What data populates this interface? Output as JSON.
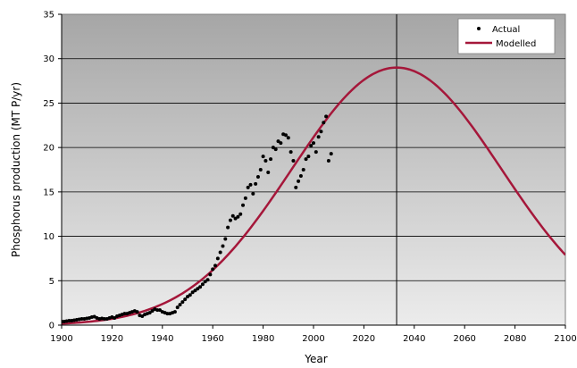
{
  "chart_data": {
    "type": "line",
    "title": "",
    "xlabel": "Year",
    "ylabel": "Phosphorus production (MT P/yr)",
    "xlim": [
      1900,
      2100
    ],
    "ylim": [
      0,
      35
    ],
    "x_ticks": [
      1900,
      1920,
      1940,
      1960,
      1980,
      2000,
      2020,
      2040,
      2060,
      2080,
      2100
    ],
    "y_ticks": [
      0,
      5,
      10,
      15,
      20,
      25,
      30,
      35
    ],
    "grid": "horizontal",
    "legend_position": "top-right",
    "reference_line": {
      "x": 2033
    },
    "colors": {
      "plot_top": "#a6a6a6",
      "plot_bottom": "#ececec",
      "modelled": "#a5173a",
      "actual": "#000000"
    },
    "series": [
      {
        "name": "Actual",
        "kind": "scatter",
        "points": [
          [
            1900,
            0.4
          ],
          [
            1901,
            0.4
          ],
          [
            1902,
            0.45
          ],
          [
            1903,
            0.5
          ],
          [
            1904,
            0.5
          ],
          [
            1905,
            0.55
          ],
          [
            1906,
            0.6
          ],
          [
            1907,
            0.65
          ],
          [
            1908,
            0.7
          ],
          [
            1909,
            0.7
          ],
          [
            1910,
            0.75
          ],
          [
            1911,
            0.8
          ],
          [
            1912,
            0.9
          ],
          [
            1913,
            0.95
          ],
          [
            1914,
            0.8
          ],
          [
            1915,
            0.7
          ],
          [
            1916,
            0.75
          ],
          [
            1917,
            0.7
          ],
          [
            1918,
            0.7
          ],
          [
            1919,
            0.8
          ],
          [
            1920,
            0.9
          ],
          [
            1921,
            0.8
          ],
          [
            1922,
            1.0
          ],
          [
            1923,
            1.1
          ],
          [
            1924,
            1.2
          ],
          [
            1925,
            1.3
          ],
          [
            1926,
            1.3
          ],
          [
            1927,
            1.4
          ],
          [
            1928,
            1.5
          ],
          [
            1929,
            1.6
          ],
          [
            1930,
            1.5
          ],
          [
            1931,
            1.1
          ],
          [
            1932,
            1.0
          ],
          [
            1933,
            1.2
          ],
          [
            1934,
            1.3
          ],
          [
            1935,
            1.4
          ],
          [
            1936,
            1.6
          ],
          [
            1937,
            1.8
          ],
          [
            1938,
            1.7
          ],
          [
            1939,
            1.7
          ],
          [
            1940,
            1.5
          ],
          [
            1941,
            1.4
          ],
          [
            1942,
            1.3
          ],
          [
            1943,
            1.3
          ],
          [
            1944,
            1.4
          ],
          [
            1945,
            1.5
          ],
          [
            1946,
            2.0
          ],
          [
            1947,
            2.3
          ],
          [
            1948,
            2.6
          ],
          [
            1949,
            2.9
          ],
          [
            1950,
            3.2
          ],
          [
            1951,
            3.4
          ],
          [
            1952,
            3.7
          ],
          [
            1953,
            3.9
          ],
          [
            1954,
            4.1
          ],
          [
            1955,
            4.3
          ],
          [
            1956,
            4.6
          ],
          [
            1957,
            4.9
          ],
          [
            1958,
            5.1
          ],
          [
            1959,
            5.7
          ],
          [
            1960,
            6.3
          ],
          [
            1961,
            6.7
          ],
          [
            1962,
            7.5
          ],
          [
            1963,
            8.2
          ],
          [
            1964,
            8.9
          ],
          [
            1965,
            9.7
          ],
          [
            1966,
            11.0
          ],
          [
            1967,
            11.8
          ],
          [
            1968,
            12.3
          ],
          [
            1969,
            12.0
          ],
          [
            1970,
            12.2
          ],
          [
            1971,
            12.5
          ],
          [
            1972,
            13.5
          ],
          [
            1973,
            14.3
          ],
          [
            1974,
            15.5
          ],
          [
            1975,
            15.8
          ],
          [
            1976,
            14.8
          ],
          [
            1977,
            15.9
          ],
          [
            1978,
            16.7
          ],
          [
            1979,
            17.5
          ],
          [
            1980,
            19.0
          ],
          [
            1981,
            18.5
          ],
          [
            1982,
            17.2
          ],
          [
            1983,
            18.7
          ],
          [
            1984,
            20.0
          ],
          [
            1985,
            19.8
          ],
          [
            1986,
            20.7
          ],
          [
            1987,
            20.5
          ],
          [
            1988,
            21.5
          ],
          [
            1989,
            21.4
          ],
          [
            1990,
            21.1
          ],
          [
            1991,
            19.5
          ],
          [
            1992,
            18.5
          ],
          [
            1993,
            15.5
          ],
          [
            1994,
            16.2
          ],
          [
            1995,
            16.8
          ],
          [
            1996,
            17.5
          ],
          [
            1997,
            18.7
          ],
          [
            1998,
            19.0
          ],
          [
            1999,
            20.2
          ],
          [
            2000,
            20.5
          ],
          [
            2001,
            19.5
          ],
          [
            2002,
            21.2
          ],
          [
            2003,
            21.8
          ],
          [
            2004,
            22.8
          ],
          [
            2005,
            23.5
          ],
          [
            2006,
            18.5
          ],
          [
            2007,
            19.3
          ]
        ]
      },
      {
        "name": "Modelled",
        "kind": "line",
        "peak_year": 2033,
        "peak_value": 29
      }
    ]
  }
}
